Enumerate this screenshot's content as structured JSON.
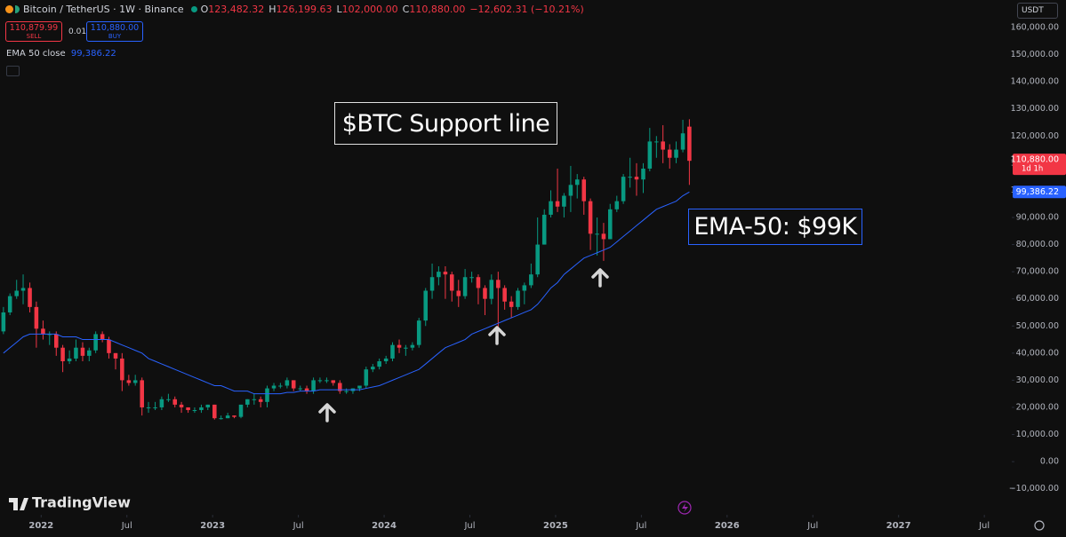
{
  "header": {
    "symbol": "Bitcoin / TetherUS · 1W · Binance",
    "ohlc": [
      {
        "key": "O",
        "value": "123,482.32"
      },
      {
        "key": "H",
        "value": "126,199.63"
      },
      {
        "key": "L",
        "value": "102,000.00"
      },
      {
        "key": "C",
        "value": "110,880.00"
      }
    ],
    "change": "−12,602.31 (−10.21%)",
    "sell": {
      "price": "110,879.99",
      "label": "SELL"
    },
    "spread": "0.01",
    "buy": {
      "price": "110,880.00",
      "label": "BUY"
    },
    "currency": "USDT",
    "brand": "TradingView"
  },
  "chart_data": {
    "type": "candlestick",
    "up_color": "#089981",
    "down_color": "#f23645",
    "x": [
      2021.78,
      2021.818,
      2021.857,
      2021.895,
      2021.934,
      2021.972,
      2022.011,
      2022.049,
      2022.088,
      2022.126,
      2022.165,
      2022.203,
      2022.242,
      2022.28,
      2022.318,
      2022.357,
      2022.395,
      2022.434,
      2022.472,
      2022.511,
      2022.549,
      2022.588,
      2022.626,
      2022.665,
      2022.703,
      2022.742,
      2022.78,
      2022.818,
      2022.857,
      2022.895,
      2022.934,
      2022.972,
      2023.011,
      2023.049,
      2023.088,
      2023.126,
      2023.165,
      2023.203,
      2023.242,
      2023.28,
      2023.318,
      2023.357,
      2023.395,
      2023.434,
      2023.472,
      2023.511,
      2023.549,
      2023.588,
      2023.626,
      2023.665,
      2023.703,
      2023.742,
      2023.78,
      2023.818,
      2023.857,
      2023.895,
      2023.934,
      2023.972,
      2024.011,
      2024.049,
      2024.088,
      2024.126,
      2024.165,
      2024.203,
      2024.242,
      2024.28,
      2024.318,
      2024.357,
      2024.395,
      2024.434,
      2024.472,
      2024.511,
      2024.549,
      2024.588,
      2024.626,
      2024.665,
      2024.703,
      2024.742,
      2024.78,
      2024.818,
      2024.857,
      2024.895,
      2024.934,
      2024.972,
      2025.011,
      2025.049,
      2025.088,
      2025.126,
      2025.165,
      2025.203,
      2025.242,
      2025.28,
      2025.318,
      2025.357,
      2025.395,
      2025.434,
      2025.472,
      2025.511,
      2025.549,
      2025.588,
      2025.626,
      2025.665,
      2025.703,
      2025.742,
      2025.78
    ],
    "open": [
      48000,
      55000,
      61000,
      63000,
      64000,
      57000,
      49000,
      47000,
      47000,
      42000,
      37000,
      38000,
      42000,
      39000,
      41000,
      47000,
      45000,
      40000,
      38000,
      30000,
      29000,
      30000,
      20000,
      20000,
      20000,
      23000,
      23000,
      21000,
      20000,
      19000,
      19000,
      20000,
      21000,
      16000,
      16000,
      17000,
      16500,
      21000,
      23000,
      23000,
      22000,
      27000,
      28000,
      28000,
      30000,
      27000,
      27000,
      26000,
      30000,
      30000,
      30000,
      29000,
      26000,
      26000,
      27000,
      28000,
      34000,
      35000,
      37000,
      38000,
      43000,
      42000,
      42000,
      43000,
      52000,
      63000,
      68000,
      70000,
      69000,
      63000,
      61000,
      68000,
      68000,
      64000,
      60000,
      67000,
      64000,
      59000,
      57000,
      63000,
      65000,
      69000,
      80000,
      91000,
      96000,
      94000,
      98000,
      102000,
      104000,
      96000,
      84000,
      84000,
      82000,
      93000,
      96000,
      105000,
      105000,
      104000,
      108000,
      118000,
      118000,
      115000,
      112000,
      115000,
      123482.32
    ],
    "high": [
      57000,
      62000,
      67000,
      69000,
      66000,
      59000,
      52000,
      48000,
      48000,
      43000,
      41000,
      45000,
      44000,
      42000,
      48000,
      48000,
      46000,
      40000,
      40000,
      32000,
      32000,
      31000,
      22000,
      22000,
      24000,
      25000,
      24000,
      22000,
      20000,
      20000,
      21000,
      21000,
      21000,
      17000,
      18000,
      17000,
      21000,
      23000,
      25000,
      24000,
      28000,
      29000,
      29000,
      31000,
      30000,
      28000,
      28000,
      31000,
      31000,
      31000,
      30000,
      30000,
      27000,
      27000,
      28000,
      35000,
      36000,
      38000,
      39000,
      44000,
      45000,
      43000,
      44000,
      53000,
      64000,
      73000,
      72000,
      72000,
      70000,
      67000,
      71000,
      70000,
      69000,
      65000,
      69000,
      70000,
      65000,
      61000,
      64000,
      66000,
      73000,
      90000,
      93000,
      100000,
      108000,
      99000,
      109000,
      106000,
      105000,
      97000,
      90000,
      88000,
      95000,
      98000,
      106000,
      112000,
      110000,
      110000,
      123000,
      120000,
      124000,
      117000,
      118000,
      126000,
      126199.63
    ],
    "low": [
      47000,
      54000,
      60000,
      58000,
      55000,
      42000,
      45000,
      43000,
      39000,
      33000,
      36000,
      37000,
      37000,
      37000,
      40000,
      44000,
      38000,
      34000,
      26000,
      28000,
      28000,
      17000,
      18000,
      19000,
      19000,
      22000,
      20000,
      18000,
      18000,
      18000,
      18000,
      19000,
      15500,
      15500,
      16000,
      16000,
      16000,
      20000,
      21000,
      20000,
      20000,
      26000,
      27000,
      27000,
      26000,
      26000,
      25000,
      25000,
      29000,
      29000,
      28000,
      25000,
      25000,
      25000,
      26000,
      27000,
      33000,
      34000,
      36000,
      37000,
      40000,
      39000,
      41000,
      42000,
      50000,
      60000,
      65000,
      60000,
      59000,
      57000,
      60000,
      66000,
      58000,
      54000,
      58000,
      49000,
      56000,
      53000,
      56000,
      58000,
      64000,
      68000,
      80000,
      90000,
      92000,
      90000,
      92000,
      97000,
      91000,
      78000,
      76000,
      74000,
      82000,
      92000,
      95000,
      101000,
      98000,
      99000,
      107000,
      112000,
      110000,
      108000,
      110000,
      114000,
      102000
    ],
    "close": [
      55000,
      61000,
      63000,
      64000,
      57000,
      49000,
      47000,
      47000,
      42000,
      37000,
      38000,
      42000,
      39000,
      41000,
      47000,
      45000,
      40000,
      38000,
      30000,
      29000,
      30000,
      20000,
      20000,
      20000,
      23000,
      23000,
      21000,
      20000,
      19000,
      19000,
      20000,
      21000,
      16000,
      16000,
      17000,
      16500,
      21000,
      23000,
      23000,
      22000,
      27000,
      28000,
      28000,
      30000,
      27000,
      27000,
      26000,
      30000,
      30000,
      30000,
      29000,
      26000,
      26000,
      27000,
      28000,
      34000,
      35000,
      37000,
      38000,
      43000,
      42000,
      42000,
      43000,
      52000,
      63000,
      68000,
      70000,
      69000,
      63000,
      61000,
      68000,
      68000,
      64000,
      60000,
      67000,
      64000,
      59000,
      57000,
      63000,
      65000,
      69000,
      80000,
      91000,
      96000,
      94000,
      98000,
      102000,
      104000,
      96000,
      84000,
      84000,
      82000,
      93000,
      96000,
      105000,
      105000,
      104000,
      108000,
      118000,
      118000,
      115000,
      112000,
      115000,
      121000,
      110880
    ],
    "series": [
      {
        "name": "EMA 50 close",
        "color": "#2962ff",
        "values": [
          40000,
          42000,
          44000,
          46000,
          47000,
          47000,
          47000,
          47000,
          47000,
          46000,
          46000,
          46000,
          45000,
          45000,
          45000,
          45000,
          45000,
          44000,
          43000,
          42000,
          41000,
          40000,
          38000,
          37000,
          36000,
          35000,
          34000,
          33000,
          32000,
          31000,
          30000,
          29000,
          28000,
          28000,
          27000,
          26000,
          26000,
          26000,
          25000,
          25000,
          25000,
          25000,
          25000,
          25500,
          25500,
          26000,
          26000,
          26000,
          26500,
          26500,
          26500,
          26500,
          26500,
          26500,
          26500,
          27000,
          27500,
          28000,
          29000,
          30000,
          31000,
          32000,
          33000,
          34000,
          36000,
          38000,
          40000,
          42000,
          43000,
          44000,
          45000,
          47000,
          48000,
          49000,
          50000,
          51000,
          52000,
          53000,
          54000,
          55000,
          56000,
          58000,
          61000,
          64000,
          66000,
          69000,
          71000,
          73000,
          75000,
          76000,
          77000,
          78000,
          79000,
          81000,
          83000,
          85000,
          87000,
          89000,
          91000,
          93000,
          94000,
          95000,
          96000,
          98000,
          99386.22
        ]
      }
    ],
    "xlim": [
      2021.76,
      2027.66
    ],
    "xticks": [
      2022,
      {
        "value": 2022.5,
        "label": "Jul"
      },
      2023,
      {
        "value": 2023.5,
        "label": "Jul"
      },
      2024,
      {
        "value": 2024.5,
        "label": "Jul"
      },
      2025,
      {
        "value": 2025.5,
        "label": "Jul"
      },
      2026,
      {
        "value": 2026.5,
        "label": "Jul"
      },
      2027,
      {
        "value": 2027.5,
        "label": "Jul"
      }
    ],
    "ylim": [
      -19600,
      170150
    ],
    "yticks": [
      {
        "value": 160000,
        "label": "160,000.00"
      },
      {
        "value": 150000,
        "label": "150,000.00"
      },
      {
        "value": 140000,
        "label": "140,000.00"
      },
      {
        "value": 130000,
        "label": "130,000.00"
      },
      {
        "value": 120000,
        "label": "120,000.00"
      },
      {
        "value": 110000,
        "label": "110,000.00"
      },
      {
        "value": 100000,
        "label": "100,000.00"
      },
      {
        "value": 90000,
        "label": "90,000.00"
      },
      {
        "value": 80000,
        "label": "80,000.00"
      },
      {
        "value": 70000,
        "label": "70,000.00"
      },
      {
        "value": 60000,
        "label": "60,000.00"
      },
      {
        "value": 50000,
        "label": "50,000.00"
      },
      {
        "value": 40000,
        "label": "40,000.00"
      },
      {
        "value": 30000,
        "label": "30,000.00"
      },
      {
        "value": 20000,
        "label": "20,000.00"
      },
      {
        "value": 10000,
        "label": "10,000.00"
      },
      {
        "value": 0,
        "label": "0.00"
      },
      {
        "value": -10000,
        "label": "−10,000.00"
      }
    ],
    "grid": false,
    "price_tags": [
      {
        "value": 110880,
        "label": "110,880.00",
        "note": "1d 1h",
        "color": "#f23645"
      },
      {
        "value": 99386.22,
        "label": "99,386.22",
        "color": "#2962ff"
      }
    ],
    "annotations": [
      {
        "text": "$BTC Support line"
      },
      {
        "text": "EMA-50: $99K"
      }
    ]
  }
}
